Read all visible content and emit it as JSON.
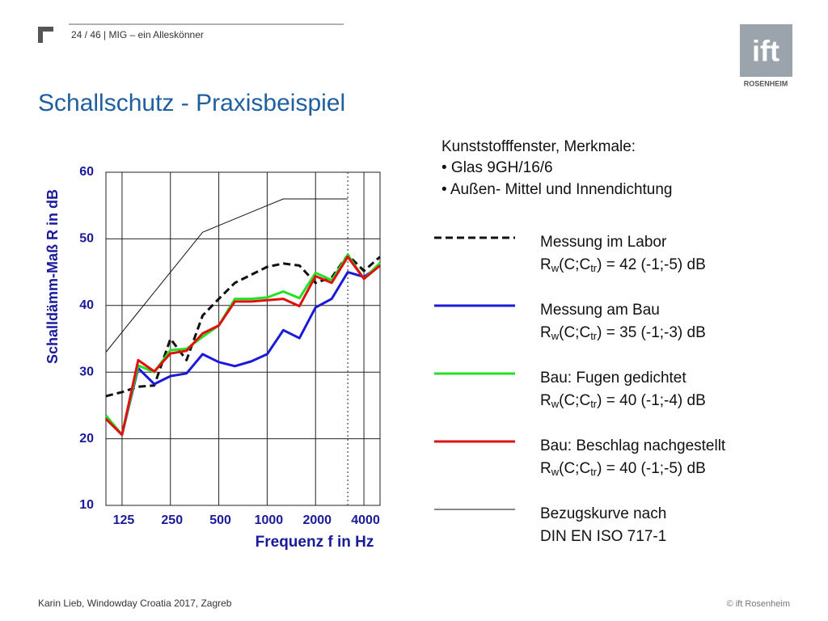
{
  "slide": {
    "header": "24 / 46  |  MIG – ein Alleskönner",
    "title": "Schallschutz - Praxisbeispiel",
    "logo": "ift",
    "logo_sub": "ROSENHEIM",
    "description": [
      "Kunststofffenster, Merkmale:",
      "• Glas 9GH/16/6",
      "• Außen- Mittel und Innendichtung"
    ],
    "footer_left": "Karin Lieb, Windowday Croatia 2017, Zagreb",
    "footer_right": "© ift Rosenheim"
  },
  "chart_data": {
    "type": "line",
    "y_label": "Schalldämm-Maß R in dB",
    "x_label": "Frequenz f in Hz",
    "categories": [
      null,
      "125",
      null,
      null,
      "250",
      null,
      null,
      "500",
      null,
      null,
      "1000",
      null,
      null,
      "2000",
      null,
      null,
      "4000",
      null
    ],
    "ylim": [
      10,
      60
    ],
    "yticks": [
      10,
      20,
      30,
      40,
      50,
      60
    ],
    "grid": true,
    "series": [
      {
        "name": "Messung im Labor",
        "rating": [
          "R",
          "w",
          "(C;C",
          "tr",
          ") = 42 (-1;-5) dB"
        ],
        "color": "#111111",
        "dashed": true,
        "values": [
          26.4,
          27,
          27.8,
          28,
          35,
          31.8,
          38.5,
          41,
          43.4,
          44.6,
          45.8,
          46.3,
          46,
          43.4,
          44.2,
          47.6,
          45.2,
          47.3
        ]
      },
      {
        "name": "Messung am Bau",
        "rating": [
          "R",
          "w",
          "(C;C",
          "tr",
          ") = 35 (-1;-3) dB"
        ],
        "color": "#1a1ad8",
        "values": [
          23,
          20.6,
          30.6,
          28.2,
          29.4,
          29.8,
          32.7,
          31.5,
          30.9,
          31.6,
          32.7,
          36.3,
          35.1,
          39.7,
          41,
          45,
          44.3,
          46
        ]
      },
      {
        "name": "Bau: Fugen gedichtet",
        "rating": [
          "R",
          "w",
          "(C;C",
          "tr",
          ") = 40 (-1;-4) dB"
        ],
        "color": "#22e022",
        "values": [
          23.5,
          20.6,
          31,
          30,
          33.3,
          33.5,
          35.3,
          37,
          41,
          41,
          41.2,
          42.1,
          41.1,
          44.9,
          43.8,
          47.6,
          44,
          46.4
        ]
      },
      {
        "name": "Bau: Beschlag nachgestellt",
        "rating": [
          "R",
          "w",
          "(C;C",
          "tr",
          ") = 40 (-1;-5) dB"
        ],
        "color": "#e01010",
        "values": [
          23,
          20.6,
          31.8,
          30.1,
          32.8,
          33.2,
          35.8,
          37,
          40.6,
          40.6,
          40.8,
          41,
          39.9,
          44.4,
          43.4,
          47.3,
          44,
          46
        ]
      },
      {
        "name": "Bezugskurve nach",
        "name_line2": "DIN EN ISO 717-1",
        "color": "#111111",
        "thin": true,
        "values": [
          33,
          36,
          39,
          42,
          45,
          48,
          51,
          52,
          53,
          54,
          55,
          56,
          56,
          56,
          56,
          56,
          null,
          null
        ]
      }
    ]
  }
}
